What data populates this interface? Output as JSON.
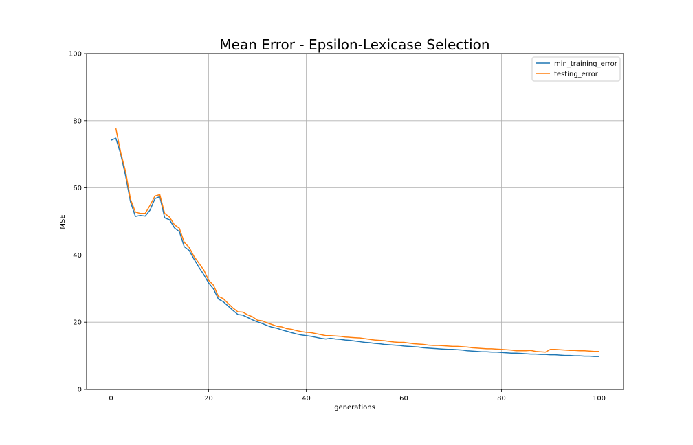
{
  "chart_data": {
    "type": "line",
    "title": "Mean Error - Epsilon-Lexicase Selection",
    "xlabel": "generations",
    "ylabel": "MSE",
    "xlim": [
      -5,
      105
    ],
    "ylim": [
      0,
      100
    ],
    "xticks": [
      0,
      20,
      40,
      60,
      80,
      100
    ],
    "yticks": [
      0,
      20,
      40,
      60,
      80,
      100
    ],
    "grid": true,
    "legend_position": "top-right",
    "series": [
      {
        "name": "min_training_error",
        "color": "#1f77b4",
        "x": [
          0,
          1,
          2,
          3,
          4,
          5,
          6,
          7,
          8,
          9,
          10,
          11,
          12,
          13,
          14,
          15,
          16,
          17,
          18,
          19,
          20,
          21,
          22,
          23,
          24,
          25,
          26,
          27,
          28,
          29,
          30,
          31,
          32,
          33,
          34,
          35,
          36,
          37,
          38,
          39,
          40,
          41,
          42,
          43,
          44,
          45,
          46,
          47,
          48,
          49,
          50,
          51,
          52,
          53,
          54,
          55,
          56,
          57,
          58,
          59,
          60,
          61,
          62,
          63,
          64,
          65,
          66,
          67,
          68,
          69,
          70,
          71,
          72,
          73,
          74,
          75,
          76,
          77,
          78,
          79,
          80,
          81,
          82,
          83,
          84,
          85,
          86,
          87,
          88,
          89,
          90,
          91,
          92,
          93,
          94,
          95,
          96,
          97,
          98,
          99,
          100
        ],
        "values": [
          74.2,
          74.8,
          70.0,
          63.5,
          55.8,
          51.5,
          51.8,
          51.6,
          53.4,
          56.8,
          57.4,
          51.1,
          50.5,
          48.1,
          47.0,
          42.5,
          41.4,
          38.8,
          36.4,
          34.2,
          31.7,
          29.9,
          26.9,
          26.1,
          24.8,
          23.5,
          22.3,
          22.1,
          21.4,
          20.7,
          20.1,
          19.6,
          19.0,
          18.5,
          18.2,
          17.7,
          17.3,
          16.9,
          16.5,
          16.2,
          16.0,
          15.8,
          15.5,
          15.2,
          15.0,
          15.2,
          15.0,
          14.9,
          14.7,
          14.6,
          14.4,
          14.2,
          14.0,
          13.9,
          13.7,
          13.6,
          13.4,
          13.3,
          13.2,
          13.1,
          12.9,
          12.8,
          12.7,
          12.6,
          12.4,
          12.3,
          12.2,
          12.1,
          12.0,
          11.9,
          11.9,
          11.8,
          11.7,
          11.5,
          11.4,
          11.3,
          11.2,
          11.2,
          11.1,
          11.1,
          11.0,
          10.9,
          10.8,
          10.8,
          10.7,
          10.6,
          10.5,
          10.5,
          10.4,
          10.4,
          10.3,
          10.3,
          10.2,
          10.1,
          10.1,
          10.0,
          10.0,
          9.9,
          9.9,
          9.8,
          9.8
        ]
      },
      {
        "name": "testing_error",
        "color": "#ff7f0e",
        "x": [
          1,
          2,
          3,
          4,
          5,
          6,
          7,
          8,
          9,
          10,
          11,
          12,
          13,
          14,
          15,
          16,
          17,
          18,
          19,
          20,
          21,
          22,
          23,
          24,
          25,
          26,
          27,
          28,
          29,
          30,
          31,
          32,
          33,
          34,
          35,
          36,
          37,
          38,
          39,
          40,
          41,
          42,
          43,
          44,
          45,
          46,
          47,
          48,
          49,
          50,
          51,
          52,
          53,
          54,
          55,
          56,
          57,
          58,
          59,
          60,
          61,
          62,
          63,
          64,
          65,
          66,
          67,
          68,
          69,
          70,
          71,
          72,
          73,
          74,
          75,
          76,
          77,
          78,
          79,
          80,
          81,
          82,
          83,
          84,
          85,
          86,
          87,
          88,
          89,
          90,
          91,
          92,
          93,
          94,
          95,
          96,
          97,
          98,
          99,
          100
        ],
        "values": [
          77.7,
          70.5,
          64.8,
          56.6,
          52.8,
          52.4,
          52.4,
          54.8,
          57.6,
          58.0,
          52.4,
          51.3,
          49.0,
          48.0,
          43.8,
          42.3,
          39.6,
          37.6,
          35.6,
          32.5,
          31.0,
          27.7,
          27.0,
          25.6,
          24.2,
          23.1,
          23.0,
          22.2,
          21.6,
          20.6,
          20.4,
          19.8,
          19.3,
          18.8,
          18.6,
          18.1,
          17.9,
          17.5,
          17.2,
          17.0,
          16.9,
          16.6,
          16.3,
          16.0,
          16.0,
          15.9,
          15.8,
          15.6,
          15.5,
          15.4,
          15.3,
          15.1,
          14.9,
          14.7,
          14.6,
          14.5,
          14.3,
          14.1,
          14.0,
          14.0,
          13.8,
          13.6,
          13.5,
          13.4,
          13.2,
          13.1,
          13.1,
          13.0,
          12.9,
          12.8,
          12.8,
          12.7,
          12.6,
          12.4,
          12.3,
          12.2,
          12.1,
          12.1,
          12.0,
          11.9,
          11.8,
          11.7,
          11.5,
          11.5,
          11.5,
          11.6,
          11.3,
          11.2,
          11.1,
          11.9,
          11.9,
          11.8,
          11.7,
          11.6,
          11.6,
          11.5,
          11.5,
          11.4,
          11.3,
          11.3
        ]
      }
    ]
  }
}
